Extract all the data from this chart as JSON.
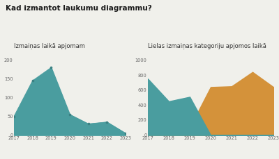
{
  "title": "Kad izmantot laukumu diagrammu?",
  "title_fontsize": 7.5,
  "background_color": "#f0f0eb",
  "left_chart": {
    "subtitle": "Izmaiņas laikā apjomam",
    "subtitle_fontsize": 6.0,
    "years": [
      2017,
      2018,
      2019,
      2020,
      2021,
      2022,
      2023
    ],
    "values": [
      50,
      145,
      180,
      55,
      30,
      35,
      5
    ],
    "fill_color": "#4a9d9f",
    "marker_color": "#3a8082",
    "ylim": [
      0,
      220
    ],
    "yticks": [
      0,
      50,
      100,
      150,
      200
    ]
  },
  "right_chart": {
    "subtitle": "Lielas izmaiņas kategoriju apjomos laikā",
    "subtitle_fontsize": 6.0,
    "years": [
      2017,
      2018,
      2019,
      2020,
      2021,
      2022,
      2023
    ],
    "series1_values": [
      750,
      450,
      510,
      0,
      0,
      0,
      0
    ],
    "series2_values": [
      0,
      100,
      100,
      640,
      650,
      840,
      640
    ],
    "series1_color": "#4a9d9f",
    "series2_color": "#d4923a",
    "ylim": [
      0,
      1100
    ],
    "yticks": [
      0,
      200,
      400,
      600,
      800,
      1000
    ]
  }
}
